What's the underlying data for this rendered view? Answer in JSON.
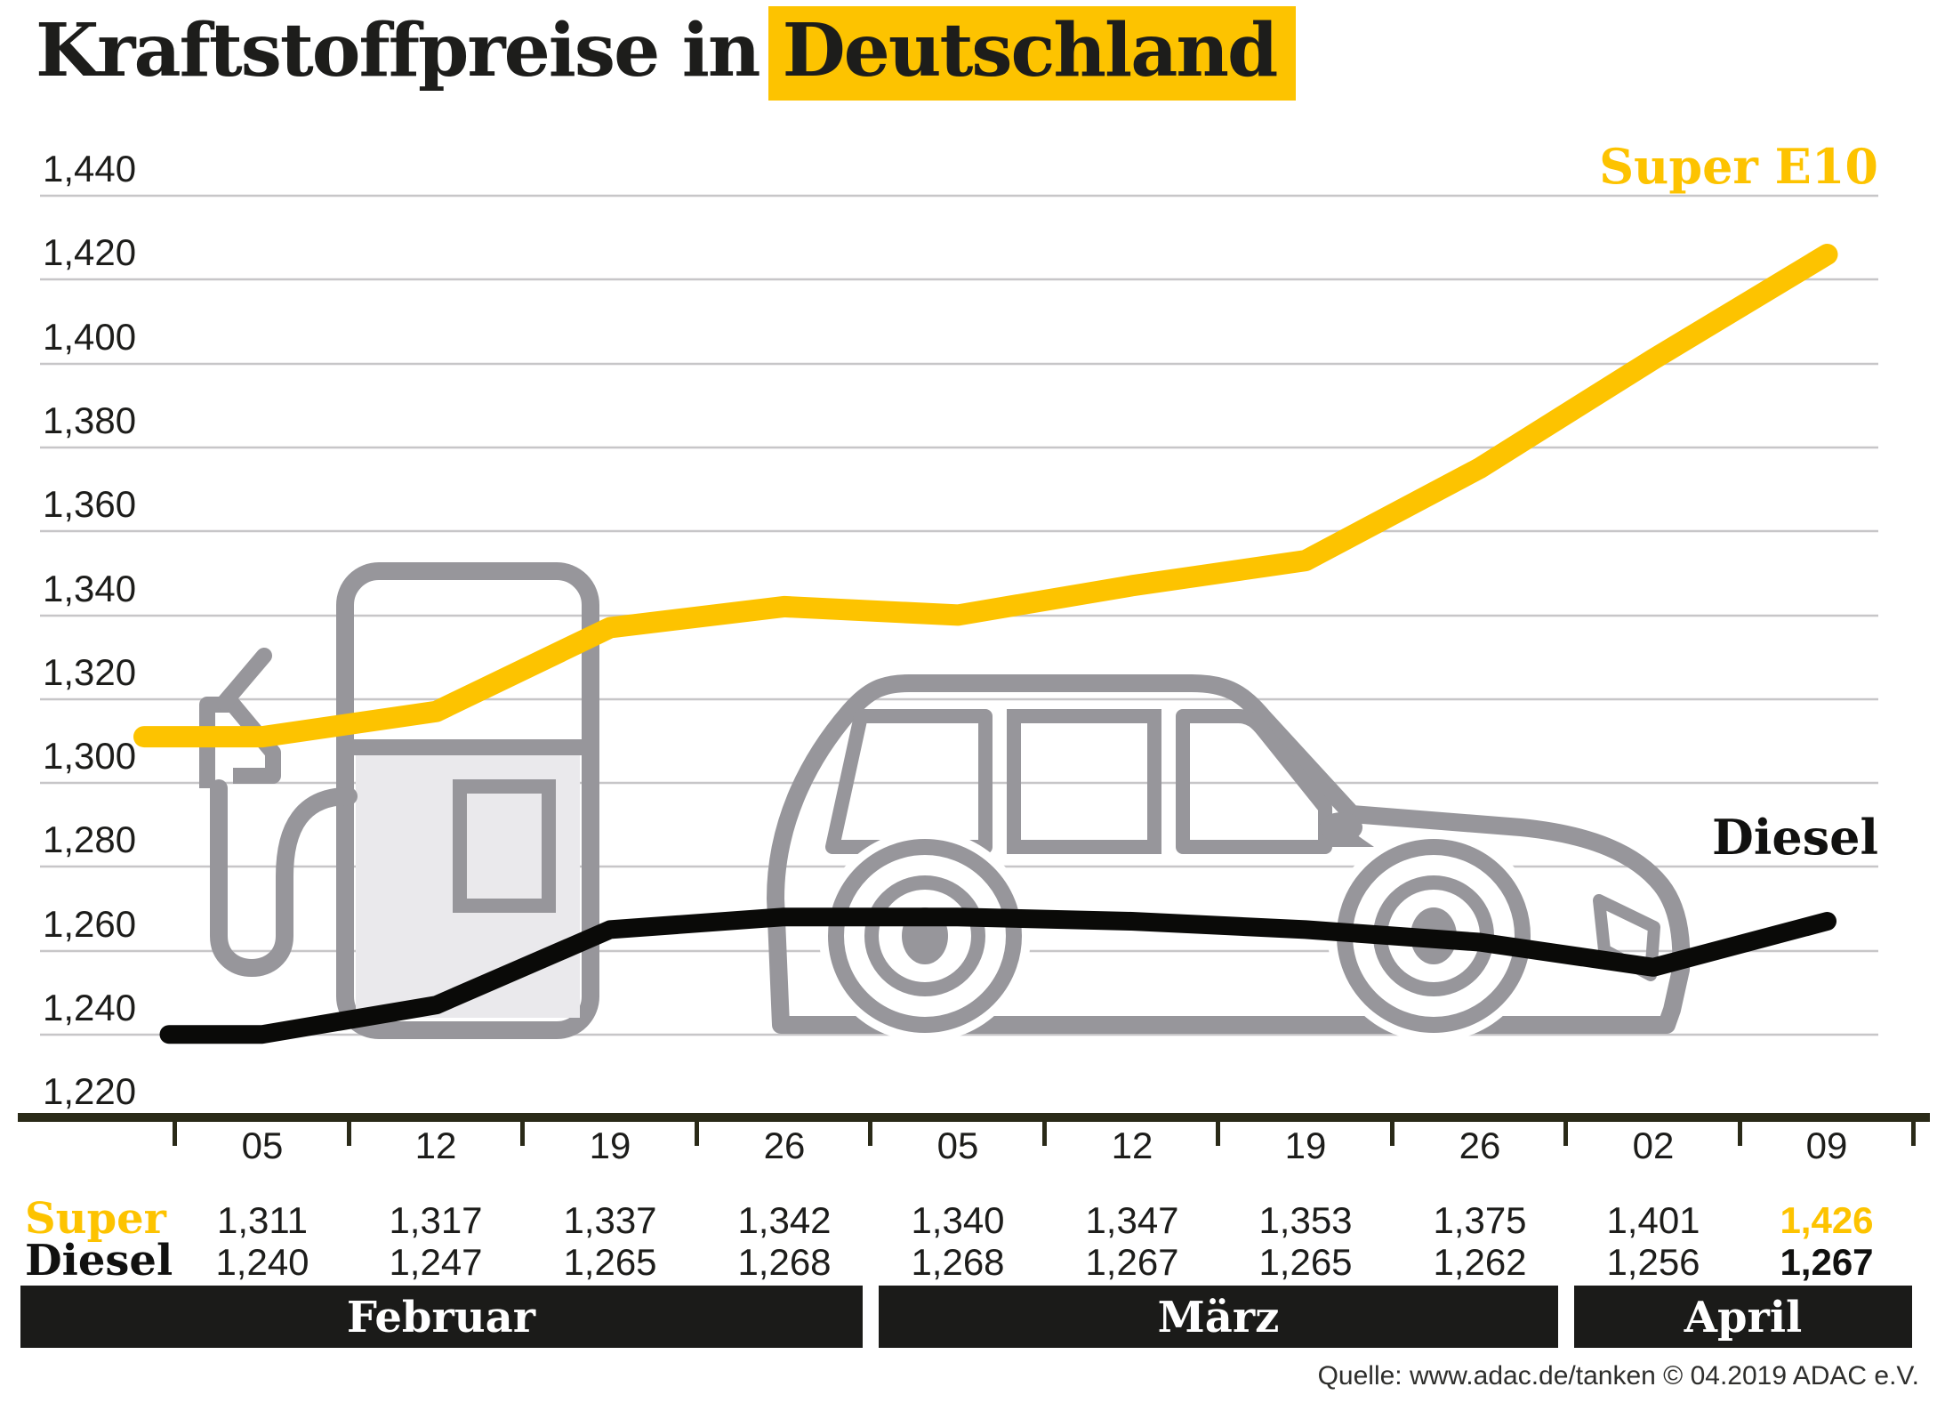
{
  "title": {
    "plain": "Kraftstoffpreise in",
    "highlight": "Deutschland"
  },
  "colors": {
    "accent_yellow": "#FDC300",
    "diesel_black": "#0A0A08",
    "grid_gray": "#C7C6C8",
    "axis_dark": "#2A2A18",
    "month_bar_bg": "#1B1B19",
    "graphic_stroke_gray": "#97969B",
    "graphic_fill_gray": "#EAE9EC"
  },
  "chart": {
    "y_tick_labels": [
      "1,440",
      "1,420",
      "1,400",
      "1,380",
      "1,360",
      "1,340",
      "1,320",
      "1,300",
      "1,280",
      "1,260",
      "1,240",
      "1,220"
    ],
    "super_label": "Super E10",
    "diesel_label": "Diesel"
  },
  "chart_data": {
    "type": "line",
    "title": "Kraftstoffpreise in Deutschland",
    "categories": [
      "05",
      "12",
      "19",
      "26",
      "05",
      "12",
      "19",
      "26",
      "02",
      "09"
    ],
    "series": [
      {
        "name": "Super E10",
        "color": "#FDC300",
        "values": [
          1.311,
          1.317,
          1.337,
          1.342,
          1.34,
          1.347,
          1.353,
          1.375,
          1.401,
          1.426
        ]
      },
      {
        "name": "Diesel",
        "color": "#0A0A08",
        "values": [
          1.24,
          1.247,
          1.265,
          1.268,
          1.268,
          1.267,
          1.265,
          1.262,
          1.256,
          1.267
        ]
      }
    ],
    "ylim": [
      1.22,
      1.44
    ],
    "y_step": 0.02,
    "grid": true,
    "legend_position": "inline-right",
    "months": [
      "Februar",
      "März",
      "April"
    ]
  },
  "table": {
    "super_label": "Super",
    "diesel_label": "Diesel",
    "super_values": [
      "1,311",
      "1,317",
      "1,337",
      "1,342",
      "1,340",
      "1,347",
      "1,353",
      "1,375",
      "1,401",
      "1,426"
    ],
    "diesel_values": [
      "1,240",
      "1,247",
      "1,265",
      "1,268",
      "1,268",
      "1,267",
      "1,265",
      "1,262",
      "1,256",
      "1,267"
    ]
  },
  "months": [
    "Februar",
    "März",
    "April"
  ],
  "source": "Quelle: www.adac.de/tanken   © 04.2019  ADAC e.V."
}
